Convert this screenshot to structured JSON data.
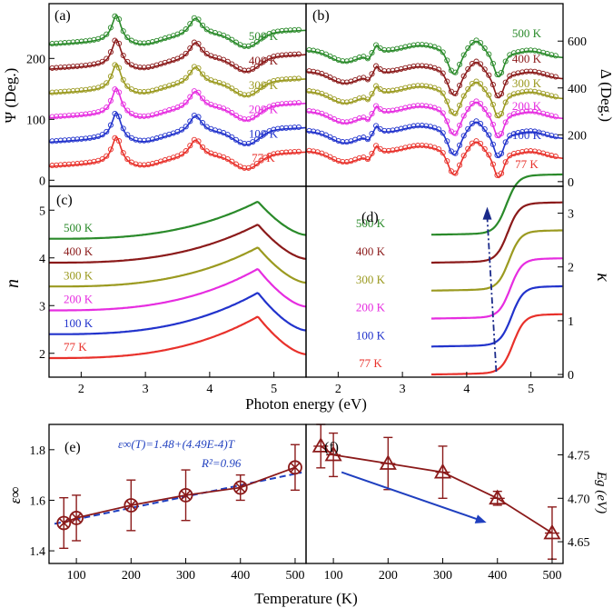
{
  "chart_data": [
    {
      "id": "a",
      "type": "line",
      "panel_label": "(a)",
      "ylabel": "Ψ (Deg.)",
      "ylim": [
        -10,
        290
      ],
      "yticks": [
        0,
        100,
        200
      ],
      "xlim": [
        1.5,
        5.5
      ],
      "series_style": "open circles (measured) with solid lines (fit)",
      "series": [
        {
          "name": "77 K",
          "color": "#e8312b",
          "offset": 0
        },
        {
          "name": "100 K",
          "color": "#2233cc",
          "offset": 40
        },
        {
          "name": "200 K",
          "color": "#e62de0",
          "offset": 80
        },
        {
          "name": "300 K",
          "color": "#9b9a20",
          "offset": 120
        },
        {
          "name": "400 K",
          "color": "#8b1a1a",
          "offset": 160
        },
        {
          "name": "500 K",
          "color": "#2a8a2a",
          "offset": 200
        }
      ]
    },
    {
      "id": "b",
      "type": "line",
      "panel_label": "(b)",
      "ylabel": "Δ (Deg.)",
      "ylim": [
        -20,
        760
      ],
      "yticks": [
        0,
        200,
        400,
        600
      ],
      "xlim": [
        1.5,
        5.5
      ],
      "series": [
        {
          "name": "77 K",
          "color": "#e8312b"
        },
        {
          "name": "100 K",
          "color": "#2233cc"
        },
        {
          "name": "200 K",
          "color": "#e62de0"
        },
        {
          "name": "300 K",
          "color": "#9b9a20"
        },
        {
          "name": "400 K",
          "color": "#8b1a1a"
        },
        {
          "name": "500 K",
          "color": "#2a8a2a"
        }
      ]
    },
    {
      "id": "c",
      "type": "line",
      "panel_label": "(c)",
      "ylabel": "n",
      "ylim": [
        1.5,
        5.5
      ],
      "yticks": [
        2,
        3,
        4,
        5
      ],
      "xticks": [
        2,
        3,
        4,
        5
      ],
      "xlim": [
        1.5,
        5.5
      ],
      "series": [
        {
          "name": "77 K",
          "color": "#e8312b",
          "base": 1.9,
          "peak": 2.77,
          "end": 1.98
        },
        {
          "name": "100 K",
          "color": "#2233cc",
          "base": 2.4,
          "peak": 3.27,
          "end": 2.48
        },
        {
          "name": "200 K",
          "color": "#e62de0",
          "base": 2.9,
          "peak": 3.77,
          "end": 2.98
        },
        {
          "name": "300 K",
          "color": "#9b9a20",
          "base": 3.4,
          "peak": 4.22,
          "end": 3.48
        },
        {
          "name": "400 K",
          "color": "#8b1a1a",
          "base": 3.9,
          "peak": 4.7,
          "end": 3.98
        },
        {
          "name": "500 K",
          "color": "#2a8a2a",
          "base": 4.4,
          "peak": 5.18,
          "end": 4.48
        }
      ]
    },
    {
      "id": "d",
      "type": "line",
      "panel_label": "(d)",
      "ylabel": "κ",
      "ylim": [
        -0.05,
        3.5
      ],
      "yticks": [
        0,
        1,
        2,
        3
      ],
      "xticks": [
        2,
        3,
        4,
        5
      ],
      "xlim": [
        1.5,
        5.5
      ],
      "series": [
        {
          "name": "77 K",
          "color": "#e8312b",
          "base": 0.0,
          "top": 1.08
        },
        {
          "name": "100 K",
          "color": "#2233cc",
          "base": 0.52,
          "top": 1.6
        },
        {
          "name": "200 K",
          "color": "#e62de0",
          "base": 1.04,
          "top": 2.12
        },
        {
          "name": "300 K",
          "color": "#9b9a20",
          "base": 1.56,
          "top": 2.64
        },
        {
          "name": "400 K",
          "color": "#8b1a1a",
          "base": 2.08,
          "top": 3.16
        },
        {
          "name": "500 K",
          "color": "#2a8a2a",
          "base": 2.6,
          "top": 3.68
        }
      ],
      "arrow": {
        "from": [
          4.46,
          0.05
        ],
        "to": [
          4.32,
          3.05
        ],
        "color": "#1a2a8a"
      }
    },
    {
      "id": "e",
      "type": "scatter",
      "panel_label": "(e)",
      "xlabel": "Temperature (K)",
      "ylabel": "ε∞",
      "ylim": [
        1.35,
        1.9
      ],
      "yticks": [
        1.4,
        1.6,
        1.8
      ],
      "xlim": [
        50,
        520
      ],
      "xticks": [
        100,
        200,
        300,
        400,
        500
      ],
      "x": [
        77,
        100,
        200,
        300,
        400,
        500
      ],
      "y": [
        1.51,
        1.53,
        1.58,
        1.62,
        1.65,
        1.73
      ],
      "err": [
        0.1,
        0.09,
        0.1,
        0.1,
        0.05,
        0.09
      ],
      "fit": {
        "intercept": 1.48,
        "slope": 0.000449
      },
      "equation": "ε∞(T)=1.48+(4.49E-4)T",
      "r2": "R²=0.96",
      "marker_color": "#8b1a1a",
      "fit_color": "#1f3fbf"
    },
    {
      "id": "f",
      "type": "scatter",
      "panel_label": "(f)",
      "xlabel": "",
      "ylabel": "Eg (eV)",
      "ylim": [
        4.625,
        4.785
      ],
      "yticks": [
        4.65,
        4.7,
        4.75
      ],
      "xlim": [
        50,
        520
      ],
      "xticks": [
        100,
        200,
        300,
        400,
        500
      ],
      "x": [
        77,
        100,
        200,
        300,
        400,
        500
      ],
      "y": [
        4.76,
        4.75,
        4.74,
        4.73,
        4.7,
        4.66
      ],
      "err": [
        0.025,
        0.025,
        0.03,
        0.03,
        0.008,
        0.03
      ],
      "marker_color": "#8b1a1a",
      "arrow": {
        "from": [
          115,
          4.73
        ],
        "to": [
          380,
          4.672
        ],
        "color": "#1f3fbf"
      }
    }
  ],
  "x_axis_label": "Photon energy (eV)",
  "x_tick_labels": [
    "2",
    "3",
    "4",
    "5"
  ],
  "temperature_labels": [
    "500 K",
    "400 K",
    "300 K",
    "200 K",
    "100 K",
    "77 K"
  ]
}
